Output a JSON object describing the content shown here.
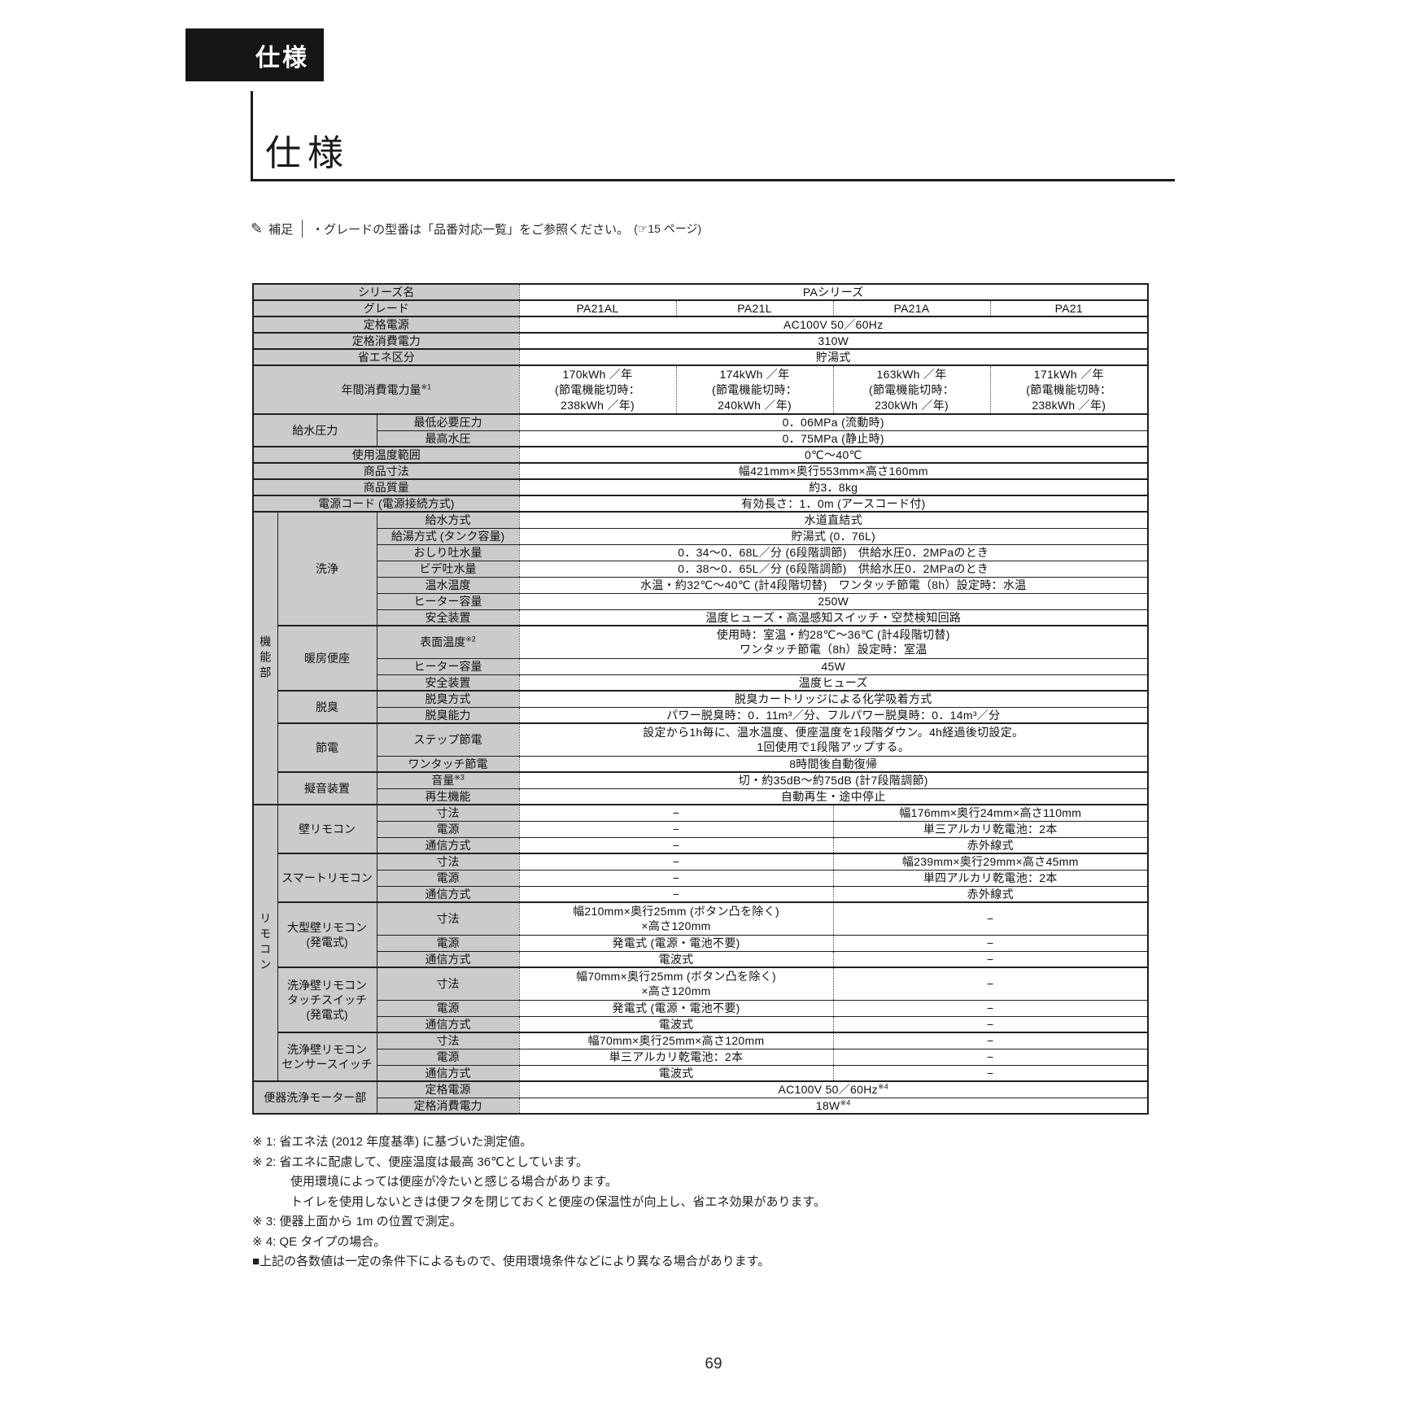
{
  "page": {
    "tab_label": "仕様",
    "heading": "仕様",
    "page_number": "69"
  },
  "note": {
    "icon": "pencil-icon",
    "icon_glyph": "✎",
    "label": "補足",
    "text": "・グレードの型番は「品番対応一覧」をご参照ください。",
    "ref": "(☞15 ページ)"
  },
  "colors": {
    "tab_bg": "#161616",
    "label_bg": "#cbcbcb",
    "border": "#1f1f1f"
  },
  "table": {
    "series_name": "PAシリーズ",
    "grades": [
      "PA21AL",
      "PA21L",
      "PA21A",
      "PA21"
    ],
    "rows": [
      {
        "h": 1,
        "cells": [
          {
            "t": "シリーズ名",
            "cs": 3,
            "k": "l"
          },
          {
            "t": "PAシリーズ",
            "cs": 4,
            "k": "d"
          }
        ]
      },
      {
        "h": 1,
        "cells": [
          {
            "t": "グレード",
            "cs": 3,
            "k": "l"
          },
          {
            "t": "PA21AL",
            "k": "d"
          },
          {
            "t": "PA21L",
            "k": "d"
          },
          {
            "t": "PA21A",
            "k": "d"
          },
          {
            "t": "PA21",
            "k": "d"
          }
        ]
      },
      {
        "h": 1,
        "cells": [
          {
            "t": "定格電源",
            "cs": 3,
            "k": "l"
          },
          {
            "t": "AC100V 50／60Hz",
            "cs": 4,
            "k": "d"
          }
        ]
      },
      {
        "h": 1,
        "cells": [
          {
            "t": "定格消費電力",
            "cs": 3,
            "k": "l"
          },
          {
            "t": "310W",
            "cs": 4,
            "k": "d"
          }
        ]
      },
      {
        "h": 1,
        "cells": [
          {
            "t": "省エネ区分",
            "cs": 3,
            "k": "l"
          },
          {
            "t": "貯湯式",
            "cs": 4,
            "k": "d"
          }
        ]
      },
      {
        "h": 3,
        "cells": [
          {
            "t": "年間消費電力量※1",
            "cs": 3,
            "k": "l"
          },
          {
            "t": [
              "170kWh ／年",
              "(節電機能切時：",
              "238kWh ／年)"
            ],
            "k": "d"
          },
          {
            "t": [
              "174kWh ／年",
              "(節電機能切時：",
              "240kWh ／年)"
            ],
            "k": "d"
          },
          {
            "t": [
              "163kWh ／年",
              "(節電機能切時：",
              "230kWh ／年)"
            ],
            "k": "d"
          },
          {
            "t": [
              "171kWh ／年",
              "(節電機能切時：",
              "238kWh ／年)"
            ],
            "k": "d"
          }
        ]
      },
      {
        "h": 1,
        "cells": [
          {
            "t": "給水圧力",
            "cs": 2,
            "rs": 2,
            "k": "g"
          },
          {
            "t": "最低必要圧力",
            "k": "l"
          },
          {
            "t": "0．06MPa (流動時)",
            "cs": 4,
            "k": "d"
          }
        ]
      },
      {
        "h": 1,
        "thin": true,
        "cells": [
          {
            "t": "最高水圧",
            "k": "l"
          },
          {
            "t": "0．75MPa (静止時)",
            "cs": 4,
            "k": "d"
          }
        ]
      },
      {
        "h": 1,
        "cells": [
          {
            "t": "使用温度範囲",
            "cs": 3,
            "k": "l"
          },
          {
            "t": "0℃～40℃",
            "cs": 4,
            "k": "d"
          }
        ]
      },
      {
        "h": 1,
        "cells": [
          {
            "t": "商品寸法",
            "cs": 3,
            "k": "l"
          },
          {
            "t": "幅421mm×奥行553mm×高さ160mm",
            "cs": 4,
            "k": "d"
          }
        ]
      },
      {
        "h": 1,
        "cells": [
          {
            "t": "商品質量",
            "cs": 3,
            "k": "l"
          },
          {
            "t": "約3．8kg",
            "cs": 4,
            "k": "d"
          }
        ]
      },
      {
        "h": 1,
        "cells": [
          {
            "t": "電源コード (電源接続方式)",
            "cs": 3,
            "k": "l"
          },
          {
            "t": "有効長さ：1．0m (アースコード付)",
            "cs": 4,
            "k": "d"
          }
        ]
      },
      {
        "h": 1,
        "cells": [
          {
            "t": "機能部",
            "rs": 16,
            "k": "v"
          },
          {
            "t": "洗浄",
            "rs": 7,
            "k": "g"
          },
          {
            "t": "給水方式",
            "k": "l"
          },
          {
            "t": "水道直結式",
            "cs": 4,
            "k": "d"
          }
        ]
      },
      {
        "h": 1,
        "thin": true,
        "cells": [
          {
            "t": "給湯方式 (タンク容量)",
            "k": "l"
          },
          {
            "t": "貯湯式 (0．76L)",
            "cs": 4,
            "k": "d"
          }
        ]
      },
      {
        "h": 1,
        "thin": true,
        "cells": [
          {
            "t": "おしり吐水量",
            "k": "l"
          },
          {
            "t": "0．34～0．68L／分 (6段階調節)　供給水圧0．2MPaのとき",
            "cs": 4,
            "k": "d"
          }
        ]
      },
      {
        "h": 1,
        "thin": true,
        "cells": [
          {
            "t": "ビデ吐水量",
            "k": "l"
          },
          {
            "t": "0．38～0．65L／分 (6段階調節)　供給水圧0．2MPaのとき",
            "cs": 4,
            "k": "d"
          }
        ]
      },
      {
        "h": 1,
        "thin": true,
        "cells": [
          {
            "t": "温水温度",
            "k": "l"
          },
          {
            "t": "水温・約32℃～40℃ (計4段階切替)　ワンタッチ節電（8h）設定時：水温",
            "cs": 4,
            "k": "d"
          }
        ]
      },
      {
        "h": 1,
        "thin": true,
        "cells": [
          {
            "t": "ヒーター容量",
            "k": "l"
          },
          {
            "t": "250W",
            "cs": 4,
            "k": "d"
          }
        ]
      },
      {
        "h": 1,
        "thin": true,
        "cells": [
          {
            "t": "安全装置",
            "k": "l"
          },
          {
            "t": "温度ヒューズ・高温感知スイッチ・空焚検知回路",
            "cs": 4,
            "k": "d"
          }
        ]
      },
      {
        "h": 2,
        "cells": [
          {
            "t": "暖房便座",
            "rs": 3,
            "k": "g"
          },
          {
            "t": "表面温度※2",
            "k": "l"
          },
          {
            "t": [
              "使用時：室温・約28℃～36℃ (計4段階切替)",
              "ワンタッチ節電（8h）設定時：室温"
            ],
            "cs": 4,
            "k": "d"
          }
        ]
      },
      {
        "h": 1,
        "thin": true,
        "cells": [
          {
            "t": "ヒーター容量",
            "k": "l"
          },
          {
            "t": "45W",
            "cs": 4,
            "k": "d"
          }
        ]
      },
      {
        "h": 1,
        "thin": true,
        "cells": [
          {
            "t": "安全装置",
            "k": "l"
          },
          {
            "t": "温度ヒューズ",
            "cs": 4,
            "k": "d"
          }
        ]
      },
      {
        "h": 1,
        "cells": [
          {
            "t": "脱臭",
            "rs": 2,
            "k": "g"
          },
          {
            "t": "脱臭方式",
            "k": "l"
          },
          {
            "t": "脱臭カートリッジによる化学吸着方式",
            "cs": 4,
            "k": "d"
          }
        ]
      },
      {
        "h": 1,
        "thin": true,
        "cells": [
          {
            "t": "脱臭能力",
            "k": "l"
          },
          {
            "t": "パワー脱臭時：0．11m³／分、フルパワー脱臭時：0．14m³／分",
            "cs": 4,
            "k": "d"
          }
        ]
      },
      {
        "h": 2,
        "cells": [
          {
            "t": "節電",
            "rs": 2,
            "k": "g"
          },
          {
            "t": "ステップ節電",
            "k": "l"
          },
          {
            "t": [
              "設定から1h毎に、温水温度、便座温度を1段階ダウン。4h経過後切設定。",
              "1回使用で1段階アップする。"
            ],
            "cs": 4,
            "k": "d"
          }
        ]
      },
      {
        "h": 1,
        "thin": true,
        "cells": [
          {
            "t": "ワンタッチ節電",
            "k": "l"
          },
          {
            "t": "8時間後自動復帰",
            "cs": 4,
            "k": "d"
          }
        ]
      },
      {
        "h": 1,
        "cells": [
          {
            "t": "擬音装置",
            "rs": 2,
            "k": "g"
          },
          {
            "t": "音量※3",
            "k": "l"
          },
          {
            "t": "切・約35dB～約75dB (計7段階調節)",
            "cs": 4,
            "k": "d"
          }
        ]
      },
      {
        "h": 1,
        "thin": true,
        "cells": [
          {
            "t": "再生機能",
            "k": "l"
          },
          {
            "t": "自動再生・途中停止",
            "cs": 4,
            "k": "d"
          }
        ]
      },
      {
        "h": 1,
        "cells": [
          {
            "t": "リモコン",
            "rs": 15,
            "k": "v"
          },
          {
            "t": "壁リモコン",
            "rs": 3,
            "k": "g"
          },
          {
            "t": "寸法",
            "k": "l"
          },
          {
            "t": "−",
            "cs": 2,
            "k": "d"
          },
          {
            "t": "幅176mm×奥行24mm×高さ110mm",
            "cs": 2,
            "k": "d"
          }
        ]
      },
      {
        "h": 1,
        "thin": true,
        "cells": [
          {
            "t": "電源",
            "k": "l"
          },
          {
            "t": "−",
            "cs": 2,
            "k": "d"
          },
          {
            "t": "単三アルカリ乾電池：2本",
            "cs": 2,
            "k": "d"
          }
        ]
      },
      {
        "h": 1,
        "thin": true,
        "cells": [
          {
            "t": "通信方式",
            "k": "l"
          },
          {
            "t": "−",
            "cs": 2,
            "k": "d"
          },
          {
            "t": "赤外線式",
            "cs": 2,
            "k": "d"
          }
        ]
      },
      {
        "h": 1,
        "cells": [
          {
            "t": "スマートリモコン",
            "rs": 3,
            "k": "g"
          },
          {
            "t": "寸法",
            "k": "l"
          },
          {
            "t": "−",
            "cs": 2,
            "k": "d"
          },
          {
            "t": "幅239mm×奥行29mm×高さ45mm",
            "cs": 2,
            "k": "d"
          }
        ]
      },
      {
        "h": 1,
        "thin": true,
        "cells": [
          {
            "t": "電源",
            "k": "l"
          },
          {
            "t": "−",
            "cs": 2,
            "k": "d"
          },
          {
            "t": "単四アルカリ乾電池：2本",
            "cs": 2,
            "k": "d"
          }
        ]
      },
      {
        "h": 1,
        "thin": true,
        "cells": [
          {
            "t": "通信方式",
            "k": "l"
          },
          {
            "t": "−",
            "cs": 2,
            "k": "d"
          },
          {
            "t": "赤外線式",
            "cs": 2,
            "k": "d"
          }
        ]
      },
      {
        "h": 2,
        "cells": [
          {
            "t": [
              "大型壁リモコン",
              "(発電式)"
            ],
            "rs": 3,
            "k": "g"
          },
          {
            "t": "寸法",
            "k": "l"
          },
          {
            "t": [
              "幅210mm×奥行25mm (ボタン凸を除く)",
              "×高さ120mm"
            ],
            "cs": 2,
            "k": "d"
          },
          {
            "t": "−",
            "cs": 2,
            "k": "d"
          }
        ]
      },
      {
        "h": 1,
        "thin": true,
        "cells": [
          {
            "t": "電源",
            "k": "l"
          },
          {
            "t": "発電式 (電源・電池不要)",
            "cs": 2,
            "k": "d"
          },
          {
            "t": "−",
            "cs": 2,
            "k": "d"
          }
        ]
      },
      {
        "h": 1,
        "thin": true,
        "cells": [
          {
            "t": "通信方式",
            "k": "l"
          },
          {
            "t": "電波式",
            "cs": 2,
            "k": "d"
          },
          {
            "t": "−",
            "cs": 2,
            "k": "d"
          }
        ]
      },
      {
        "h": 2,
        "cells": [
          {
            "t": [
              "洗浄壁リモコン",
              "タッチスイッチ",
              "(発電式)"
            ],
            "rs": 3,
            "k": "g"
          },
          {
            "t": "寸法",
            "k": "l"
          },
          {
            "t": [
              "幅70mm×奥行25mm (ボタン凸を除く)",
              "×高さ120mm"
            ],
            "cs": 2,
            "k": "d"
          },
          {
            "t": "−",
            "cs": 2,
            "k": "d"
          }
        ]
      },
      {
        "h": 1,
        "thin": true,
        "cells": [
          {
            "t": "電源",
            "k": "l"
          },
          {
            "t": "発電式 (電源・電池不要)",
            "cs": 2,
            "k": "d"
          },
          {
            "t": "−",
            "cs": 2,
            "k": "d"
          }
        ]
      },
      {
        "h": 1,
        "thin": true,
        "cells": [
          {
            "t": "通信方式",
            "k": "l"
          },
          {
            "t": "電波式",
            "cs": 2,
            "k": "d"
          },
          {
            "t": "−",
            "cs": 2,
            "k": "d"
          }
        ]
      },
      {
        "h": 1,
        "cells": [
          {
            "t": [
              "洗浄壁リモコン",
              "センサースイッチ"
            ],
            "rs": 3,
            "k": "g"
          },
          {
            "t": "寸法",
            "k": "l"
          },
          {
            "t": "幅70mm×奥行25mm×高さ120mm",
            "cs": 2,
            "k": "d"
          },
          {
            "t": "−",
            "cs": 2,
            "k": "d"
          }
        ]
      },
      {
        "h": 1,
        "thin": true,
        "cells": [
          {
            "t": "電源",
            "k": "l"
          },
          {
            "t": "単三アルカリ乾電池：2本",
            "cs": 2,
            "k": "d"
          },
          {
            "t": "−",
            "cs": 2,
            "k": "d"
          }
        ]
      },
      {
        "h": 1,
        "thin": true,
        "cells": [
          {
            "t": "通信方式",
            "k": "l"
          },
          {
            "t": "電波式",
            "cs": 2,
            "k": "d"
          },
          {
            "t": "−",
            "cs": 2,
            "k": "d"
          }
        ]
      },
      {
        "h": 1,
        "cells": [
          {
            "t": "便器洗浄モーター部",
            "cs": 2,
            "rs": 2,
            "k": "g"
          },
          {
            "t": "定格電源",
            "k": "l"
          },
          {
            "t": "AC100V 50／60Hz※4",
            "cs": 4,
            "k": "d"
          }
        ]
      },
      {
        "h": 1,
        "thin": true,
        "cells": [
          {
            "t": "定格消費電力",
            "k": "l"
          },
          {
            "t": "18W※4",
            "cs": 4,
            "k": "d"
          }
        ]
      }
    ]
  },
  "footnotes": [
    {
      "text": "※ 1:  省エネ法 (2012 年度基準)  に基づいた測定値。",
      "indent": 0
    },
    {
      "text": "※ 2:  省エネに配慮して、便座温度は最高 36℃としています。",
      "indent": 0
    },
    {
      "text": "使用環境によっては便座が冷たいと感じる場合があります。",
      "indent": 1
    },
    {
      "text": "トイレを使用しないときは便フタを閉じておくと便座の保温性が向上し、省エネ効果があります。",
      "indent": 1
    },
    {
      "text": "※ 3:  便器上面から 1m の位置で測定。",
      "indent": 0
    },
    {
      "text": "※ 4:  QE タイプの場合。",
      "indent": 0
    },
    {
      "text": "■上記の各数値は一定の条件下によるもので、使用環境条件などにより異なる場合があります。",
      "indent": 0
    }
  ]
}
